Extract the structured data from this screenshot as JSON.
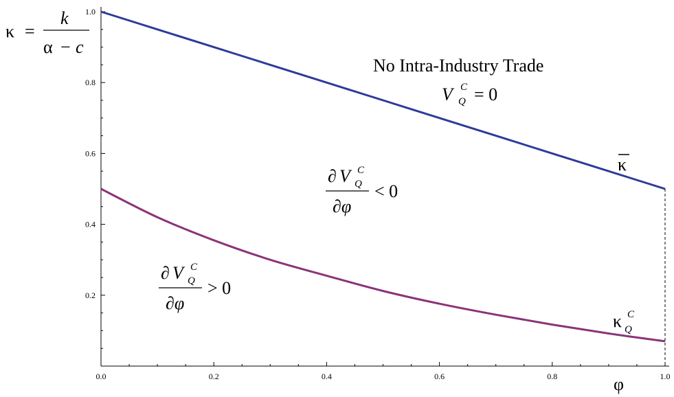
{
  "chart_data": {
    "type": "line",
    "xlim": [
      0,
      1
    ],
    "ylim": [
      0,
      1
    ],
    "x_ticks": [
      "0.0",
      "0.2",
      "0.4",
      "0.6",
      "0.8",
      "1.0"
    ],
    "y_ticks": [
      "0.2",
      "0.4",
      "0.6",
      "0.8",
      "1.0"
    ],
    "grid": false,
    "xlabel": "φ",
    "ylabel": {
      "lhs": "κ",
      "equals": "=",
      "numerator": "k",
      "denominator_a": "α",
      "denominator_minus": "−",
      "denominator_c": "c"
    },
    "series": [
      {
        "name": "κ",
        "color": "#2e3a9a",
        "x": [
          0.0,
          0.1,
          0.2,
          0.3,
          0.4,
          0.5,
          0.6,
          0.7,
          0.8,
          0.9,
          1.0
        ],
        "y": [
          1.0,
          0.95,
          0.9,
          0.85,
          0.8,
          0.75,
          0.7,
          0.65,
          0.6,
          0.55,
          0.5
        ]
      },
      {
        "name": "κ_Q^C",
        "color": "#8b3378",
        "x": [
          0.0,
          0.1,
          0.2,
          0.3,
          0.4,
          0.5,
          0.6,
          0.7,
          0.8,
          0.9,
          1.0
        ],
        "y": [
          0.5,
          0.42,
          0.355,
          0.3,
          0.255,
          0.212,
          0.176,
          0.145,
          0.117,
          0.092,
          0.07
        ]
      }
    ],
    "vertical_dashed_at_x": 1.0,
    "annotations": {
      "no_trade": "No Intra-Industry Trade",
      "no_trade_eq": {
        "V": "V",
        "sub": "Q",
        "sup": "C",
        "rest": "= 0"
      },
      "middle_region": {
        "partial": "∂",
        "V": "V",
        "sub": "Q",
        "sup": "C",
        "den": "∂φ",
        "rel": "< 0"
      },
      "lower_region": {
        "partial": "∂",
        "V": "V",
        "sub": "Q",
        "sup": "C",
        "den": "∂φ",
        "rel": "> 0"
      },
      "kappa_bar": "κ",
      "kappa_q": {
        "base": "κ",
        "sub": "Q",
        "sup": "C"
      }
    }
  }
}
